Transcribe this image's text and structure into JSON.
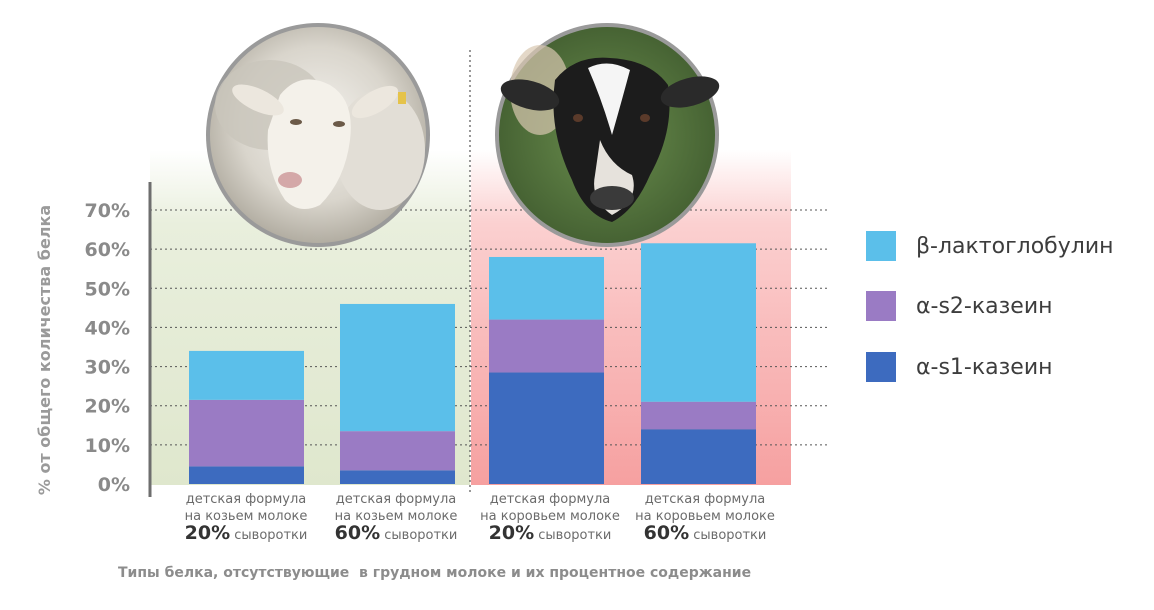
{
  "chart_data": {
    "type": "bar",
    "stacked": true,
    "ylabel": "% от общего количества белка",
    "ylim": [
      0,
      70
    ],
    "yticks": [
      "0%",
      "10%",
      "20%",
      "30%",
      "40%",
      "50%",
      "60%",
      "70%"
    ],
    "grid": true,
    "legend_position": "right",
    "categories": [
      {
        "line1": "детская формула",
        "line2": "на козьем молоке",
        "pct": "20%",
        "rest": "сыворотки"
      },
      {
        "line1": "детская формула",
        "line2": "на козьем молоке",
        "pct": "60%",
        "rest": "сыворотки"
      },
      {
        "line1": "детская формула",
        "line2": "на коровьем молоке",
        "pct": "20%",
        "rest": "сыворотки"
      },
      {
        "line1": "детская формула",
        "line2": "на коровьем молоке",
        "pct": "60%",
        "rest": "сыворотки"
      }
    ],
    "series": [
      {
        "name": "α-s1-казеин",
        "color": "#3d6bbf",
        "values": [
          4.5,
          3.5,
          28.5,
          14
        ]
      },
      {
        "name": "α-s2-казеин",
        "color": "#9a7bc4",
        "values": [
          17,
          10,
          13.5,
          7
        ]
      },
      {
        "name": "β-лактоглобулин",
        "color": "#5bbfea",
        "values": [
          12.5,
          32.5,
          16,
          40.5
        ]
      }
    ],
    "legend": [
      "β-лактоглобулин",
      "α-s2-казеин",
      "α-s1-казеин"
    ],
    "background_groups": [
      {
        "label": "goat",
        "color": "#e3ebd3"
      },
      {
        "label": "cow",
        "color": "#f6a3a3"
      }
    ]
  },
  "footer": "Типы белка, отсутствующие  в грудном молоке и их процентное содержание",
  "icons": [
    "goat-photo",
    "cow-photo"
  ]
}
